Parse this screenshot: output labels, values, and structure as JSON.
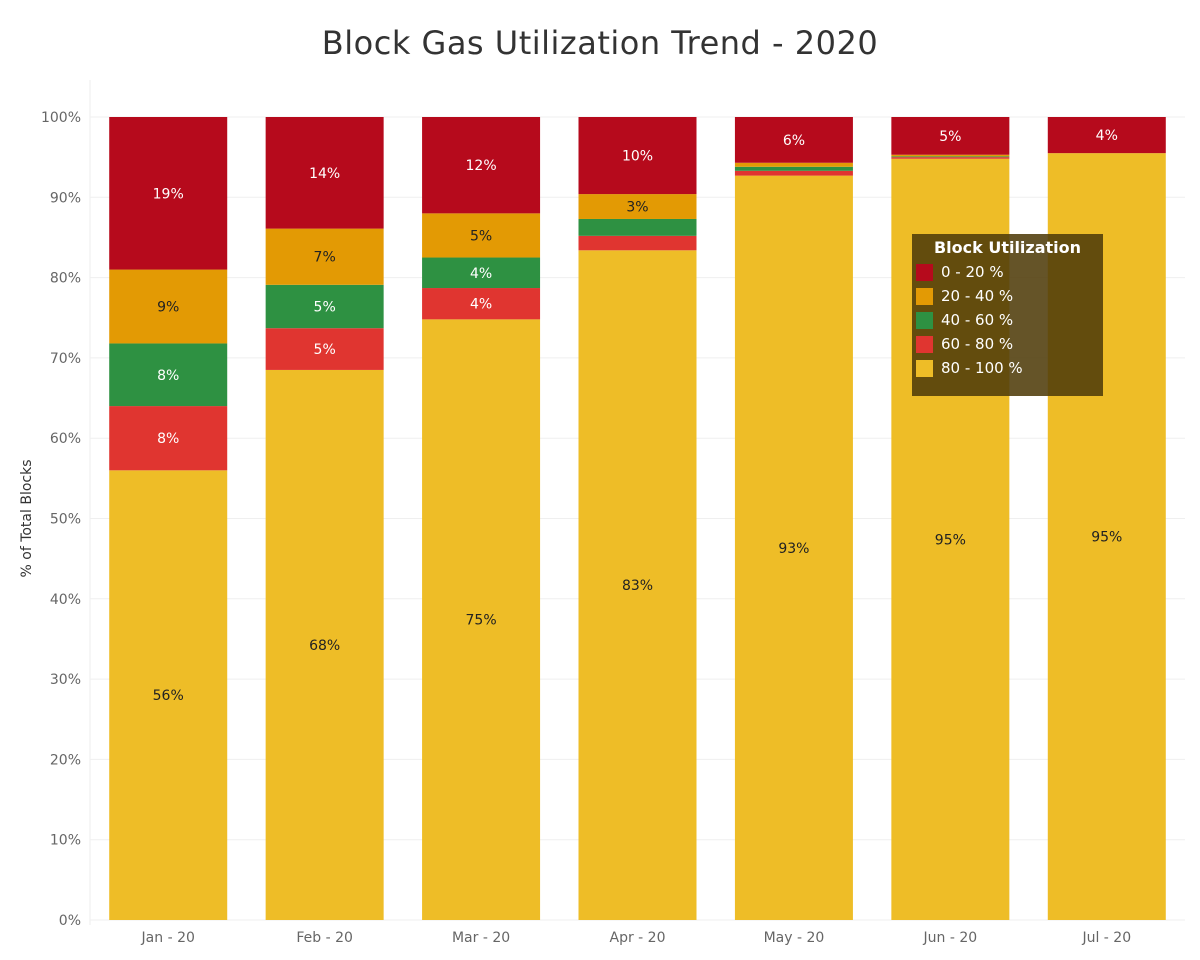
{
  "chart_data": {
    "type": "bar",
    "stacked": true,
    "title": "Block Gas Utilization Trend - 2020",
    "xlabel": "",
    "ylabel": "% of Total Blocks",
    "ylim": [
      0,
      100
    ],
    "y_ticks": [
      "0%",
      "10%",
      "20%",
      "30%",
      "40%",
      "50%",
      "60%",
      "70%",
      "80%",
      "90%",
      "100%"
    ],
    "grid": true,
    "legend": {
      "title": "Block Utilization",
      "position": "top-right"
    },
    "categories": [
      "Jan - 20",
      "Feb - 20",
      "Mar - 20",
      "Apr - 20",
      "May - 20",
      "Jun - 20",
      "Jul - 20"
    ],
    "series": [
      {
        "name": "80 - 100 %",
        "color": "#EEBD27",
        "values": [
          56,
          68.5,
          74.8,
          83.4,
          92.7,
          94.8,
          95.5
        ],
        "labels": [
          "56%",
          "68%",
          "75%",
          "83%",
          "93%",
          "95%",
          "95%"
        ]
      },
      {
        "name": "60 - 80 %",
        "color": "#E03530",
        "values": [
          8,
          5.2,
          3.9,
          1.8,
          0.6,
          0.2,
          0
        ],
        "labels": [
          "8%",
          "5%",
          "4%",
          "",
          "",
          "",
          ""
        ]
      },
      {
        "name": "40 - 60 %",
        "color": "#2E9142",
        "values": [
          7.8,
          5.4,
          3.8,
          2.1,
          0.5,
          0.1,
          0
        ],
        "labels": [
          "8%",
          "5%",
          "4%",
          "",
          "",
          "",
          ""
        ]
      },
      {
        "name": "20 - 40 %",
        "color": "#E39A04",
        "values": [
          9.2,
          7,
          5.5,
          3.1,
          0.5,
          0.2,
          0
        ],
        "labels": [
          "9%",
          "7%",
          "5%",
          "3%",
          "",
          "",
          ""
        ]
      },
      {
        "name": "0 - 20 %",
        "color": "#B60A1C",
        "values": [
          19,
          13.9,
          12,
          9.6,
          5.7,
          4.7,
          4.5
        ],
        "labels": [
          "19%",
          "14%",
          "12%",
          "10%",
          "6%",
          "5%",
          "4%"
        ]
      }
    ],
    "legend_order": [
      "0 - 20 %",
      "20 - 40 %",
      "40 - 60 %",
      "60 - 80 %",
      "80 - 100 %"
    ]
  }
}
